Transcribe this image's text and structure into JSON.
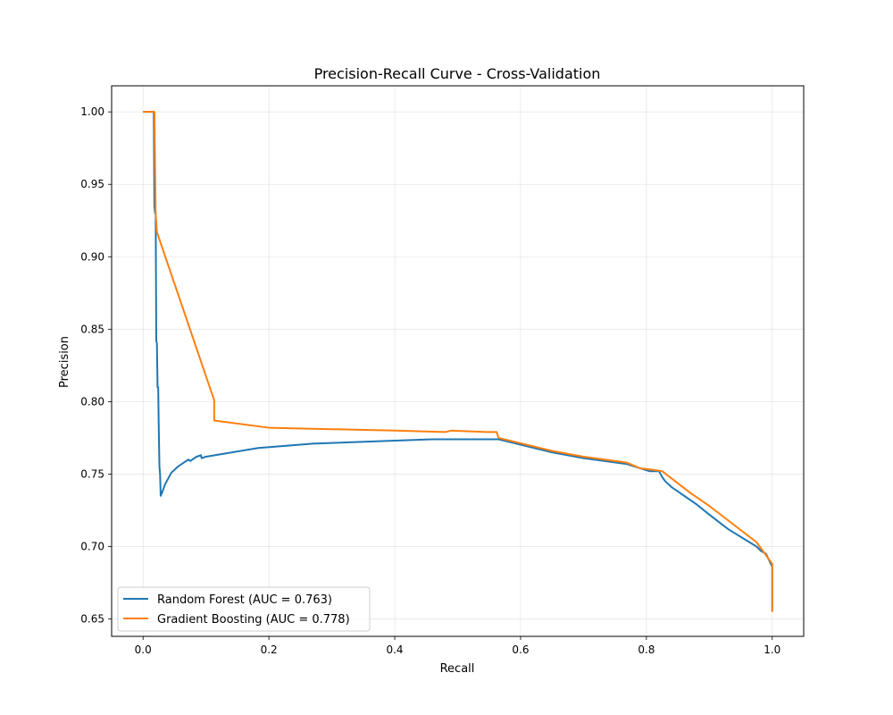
{
  "chart_data": {
    "type": "line",
    "title": "Precision-Recall Curve - Cross-Validation",
    "xlabel": "Recall",
    "ylabel": "Precision",
    "xlim": [
      -0.05,
      1.05
    ],
    "ylim": [
      0.638,
      1.018
    ],
    "xticks": [
      0.0,
      0.2,
      0.4,
      0.6,
      0.8,
      1.0
    ],
    "xtick_labels": [
      "0.0",
      "0.2",
      "0.4",
      "0.6",
      "0.8",
      "1.0"
    ],
    "yticks": [
      0.65,
      0.7,
      0.75,
      0.8,
      0.85,
      0.9,
      0.95,
      1.0
    ],
    "ytick_labels": [
      "0.65",
      "0.70",
      "0.75",
      "0.80",
      "0.85",
      "0.90",
      "0.95",
      "1.00"
    ],
    "grid": true,
    "legend_position": "lower-left",
    "series": [
      {
        "name": "Random Forest (AUC = 0.763)",
        "color": "#1f77b4",
        "x": [
          0.0,
          0.017,
          0.018,
          0.019,
          0.02,
          0.021,
          0.022,
          0.023,
          0.024,
          0.025,
          0.026,
          0.027,
          0.028,
          0.03,
          0.035,
          0.045,
          0.055,
          0.065,
          0.072,
          0.075,
          0.085,
          0.092,
          0.093,
          0.1,
          0.183,
          0.27,
          0.46,
          0.565,
          0.65,
          0.7,
          0.768,
          0.79,
          0.805,
          0.82,
          0.825,
          0.83,
          0.84,
          0.86,
          0.88,
          0.9,
          0.93,
          0.975,
          0.982,
          0.99,
          1.0,
          1.0
        ],
        "y": [
          1.0,
          1.0,
          0.935,
          0.93,
          0.93,
          0.842,
          0.84,
          0.81,
          0.81,
          0.78,
          0.755,
          0.75,
          0.735,
          0.737,
          0.743,
          0.751,
          0.755,
          0.758,
          0.76,
          0.759,
          0.762,
          0.763,
          0.761,
          0.762,
          0.768,
          0.771,
          0.774,
          0.774,
          0.765,
          0.761,
          0.757,
          0.754,
          0.752,
          0.752,
          0.748,
          0.745,
          0.741,
          0.735,
          0.729,
          0.722,
          0.712,
          0.7,
          0.697,
          0.695,
          0.686,
          0.655
        ]
      },
      {
        "name": "Gradient Boosting (AUC = 0.778)",
        "color": "#ff7f0e",
        "x": [
          0.0,
          0.015,
          0.018,
          0.02,
          0.022,
          0.113,
          0.113,
          0.2,
          0.3,
          0.4,
          0.48,
          0.49,
          0.545,
          0.548,
          0.562,
          0.565,
          0.65,
          0.7,
          0.768,
          0.79,
          0.81,
          0.825,
          0.87,
          0.9,
          0.975,
          0.99,
          1.0,
          1.0
        ],
        "y": [
          1.0,
          1.0,
          1.0,
          0.93,
          0.917,
          0.801,
          0.787,
          0.782,
          0.781,
          0.78,
          0.779,
          0.78,
          0.779,
          0.779,
          0.779,
          0.775,
          0.766,
          0.762,
          0.758,
          0.754,
          0.753,
          0.752,
          0.737,
          0.728,
          0.703,
          0.694,
          0.688,
          0.655
        ]
      }
    ]
  }
}
